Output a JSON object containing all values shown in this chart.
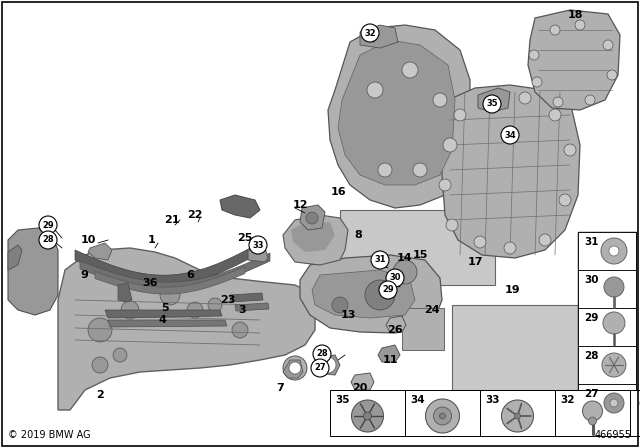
{
  "copyright": "© 2019 BMW AG",
  "diagram_number": "466955",
  "bg": "#ffffff",
  "black": "#000000",
  "gray1": "#c8c8c8",
  "gray2": "#b0b0b0",
  "gray3": "#989898",
  "gray4": "#808080",
  "gray5": "#d8d8d8",
  "white": "#ffffff"
}
